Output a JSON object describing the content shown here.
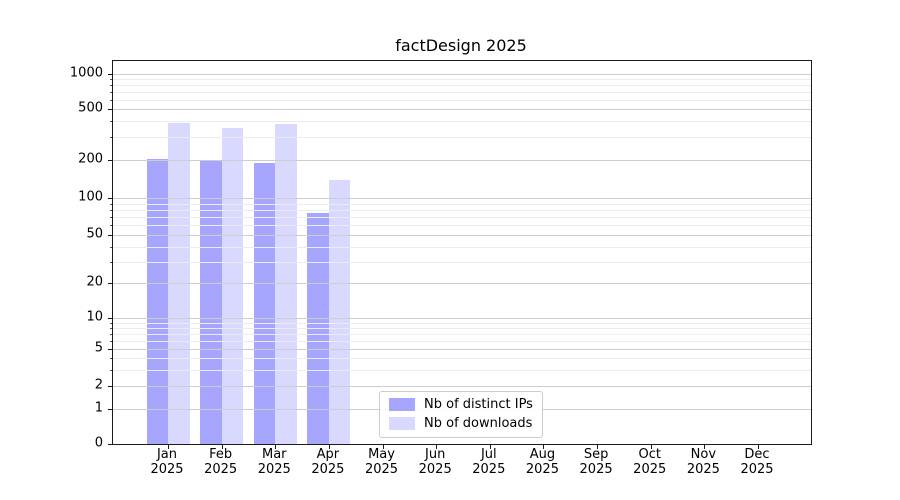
{
  "title": "factDesign 2025",
  "chart_data": {
    "type": "bar",
    "title": "factDesign 2025",
    "categories": [
      "Jan 2025",
      "Feb 2025",
      "Mar 2025",
      "Apr 2025",
      "May 2025",
      "Jun 2025",
      "Jul 2025",
      "Aug 2025",
      "Sep 2025",
      "Oct 2025",
      "Nov 2025",
      "Dec 2025"
    ],
    "months": [
      "Jan",
      "Feb",
      "Mar",
      "Apr",
      "May",
      "Jun",
      "Jul",
      "Aug",
      "Sep",
      "Oct",
      "Nov",
      "Dec"
    ],
    "year_label": "2025",
    "series": [
      {
        "name": "Nb of distinct IPs",
        "color": "rgba(0,0,255,0.35)",
        "values": [
          205,
          200,
          190,
          75,
          0,
          0,
          0,
          0,
          0,
          0,
          0,
          0
        ]
      },
      {
        "name": "Nb of downloads",
        "color": "rgba(0,0,255,0.15)",
        "values": [
          390,
          355,
          385,
          140,
          0,
          0,
          0,
          0,
          0,
          0,
          0,
          0
        ]
      }
    ],
    "yscale": "symlog",
    "yticks": [
      0,
      1,
      2,
      5,
      10,
      20,
      50,
      100,
      200,
      500,
      1000
    ],
    "ylim": [
      0,
      1400
    ],
    "grid": true,
    "legend_position": "lower center (inside plot)",
    "colors": {
      "grid_major": "#cdcdcd",
      "grid_minor": "#ececec",
      "spine": "#1a1a1a",
      "bar_base": "#0000ff"
    }
  }
}
